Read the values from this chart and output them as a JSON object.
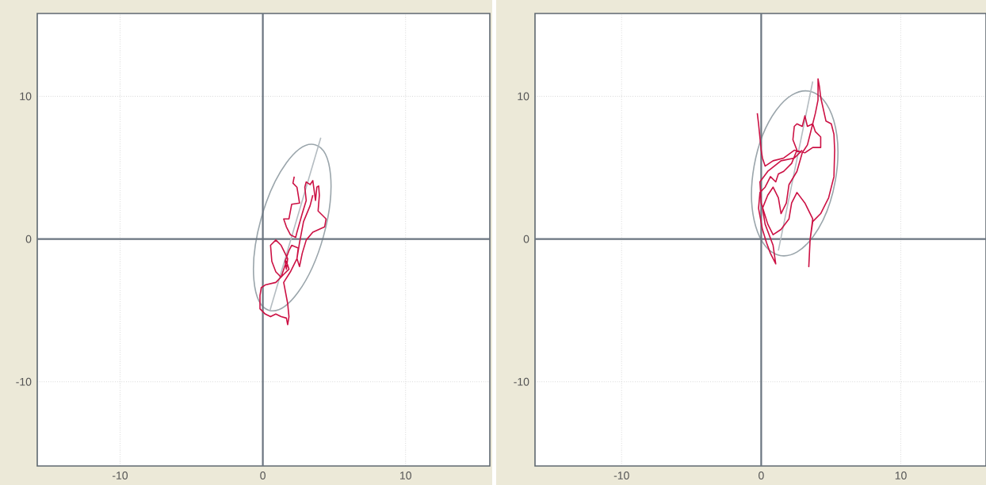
{
  "chart_data": [
    {
      "type": "line",
      "xlim": [
        -15.8,
        15.9
      ],
      "ylim": [
        -15.9,
        15.8
      ],
      "xticks": [
        -10,
        0,
        10
      ],
      "yticks": [
        -10,
        0,
        10
      ],
      "grid": true,
      "series": [
        {
          "color": "#b4bcc1",
          "x": [
            4.06,
            0.5
          ],
          "values": [
            7.1,
            -5.0
          ]
        },
        {
          "color": "#cc1144",
          "x": [
            2.2,
            2.11,
            2.39,
            2.57,
            2.02,
            1.83,
            1.46,
            1.65,
            1.93,
            2.3,
            2.39,
            2.76,
            3.04,
            2.94,
            3.04,
            3.31,
            3.5,
            3.69,
            3.78,
            3.91,
            3.96,
            3.87,
            4.43,
            4.33,
            3.5,
            3.04,
            2.76,
            2.57,
            2.39,
            2.48,
            2.02,
            1.83,
            1.56,
            1.65,
            1.74,
            1.28,
            0.91,
            0.54,
            0.63,
            0.91,
            1.28,
            1.65,
            1.83,
            1.46,
            0.91,
            0.17,
            -0.11,
            -0.2,
            -0.2,
            0.17,
            0.54,
            0.91,
            1.28,
            1.65,
            1.74,
            1.83,
            1.74,
            1.46,
            1.93,
            2.39,
            2.57,
            2.85,
            3.31,
            3.5
          ],
          "values": [
            4.37,
            3.91,
            3.63,
            2.52,
            2.43,
            1.41,
            1.41,
            0.85,
            0.3,
            0.11,
            0.48,
            1.78,
            2.7,
            3.63,
            4.0,
            3.81,
            4.09,
            2.7,
            3.63,
            3.72,
            3.07,
            1.96,
            1.41,
            0.85,
            0.48,
            -0.07,
            -1.0,
            -1.93,
            -1.37,
            -0.63,
            -0.44,
            -0.81,
            -1.56,
            -2.11,
            -1.37,
            -0.44,
            -0.07,
            -0.44,
            -1.56,
            -2.3,
            -2.67,
            -1.56,
            -2.11,
            -2.48,
            -3.04,
            -3.22,
            -3.41,
            -3.96,
            -4.89,
            -5.26,
            -5.44,
            -5.26,
            -5.44,
            -5.54,
            -6.0,
            -5.44,
            -4.52,
            -3.04,
            -2.3,
            -1.37,
            -0.26,
            1.22,
            2.33,
            3.07
          ]
        }
      ]
    },
    {
      "type": "line",
      "xlim": [
        -16.2,
        16.1
      ],
      "ylim": [
        -15.9,
        15.8
      ],
      "xticks": [
        -10,
        0,
        10
      ],
      "yticks": [
        -10,
        0,
        10
      ],
      "grid": true,
      "series": [
        {
          "color": "#b4bcc1",
          "x": [
            3.69,
            1.23
          ],
          "values": [
            11.04,
            -0.81
          ]
        },
        {
          "color": "#cc1144",
          "x": [
            -0.28,
            -0.19,
            0,
            0.09,
            0.28,
            0.85,
            1.61,
            2.37,
            3.13,
            3.69,
            4.26,
            4.26,
            3.88,
            3.69,
            3.31,
            3.13,
            2.94,
            2.56,
            2.37,
            2.27,
            2.56,
            2.18,
            1.61,
            1.23,
            1.04,
            0.66,
            0.47,
            0.28,
            -0.09,
            -0.19,
            0.09,
            0.38,
            0.66,
            1.04,
            0.85,
            0.28,
            0.09,
            0.47,
            0.85,
            1.23,
            1.42,
            1.8,
            1.99,
            2.56,
            2.94,
            3.31,
            3.5,
            3.88,
            4.07,
            4.07,
            4.17,
            4.26,
            4.64,
            5.02,
            5.21,
            5.26,
            5.21,
            4.83,
            4.26,
            3.69,
            3.5,
            3.41,
            3.5,
            3.69,
            3.13,
            2.56,
            2.18,
            1.99,
            1.42,
            0.85,
            0.47,
            0,
            -0.09,
            0.47,
            1.42,
            2.37,
            2.94
          ],
          "values": [
            8.81,
            8.07,
            6.22,
            5.67,
            5.11,
            5.48,
            5.67,
            6.22,
            6.04,
            6.41,
            6.41,
            7.15,
            7.52,
            8.07,
            7.89,
            8.63,
            7.89,
            8.07,
            7.89,
            6.96,
            6.22,
            5.3,
            4.74,
            4.56,
            4.0,
            4.37,
            4.0,
            3.63,
            3.26,
            2.15,
            0.67,
            -0.26,
            -1.0,
            -1.74,
            -0.44,
            1.04,
            2.15,
            3.07,
            3.63,
            2.89,
            1.78,
            2.52,
            3.81,
            4.74,
            6.04,
            6.59,
            7.33,
            8.81,
            9.74,
            11.22,
            10.67,
            9.93,
            8.26,
            8.07,
            7.33,
            6.22,
            4.37,
            2.89,
            1.78,
            1.22,
            -0.07,
            -1.93,
            -0.07,
            1.41,
            2.52,
            3.26,
            2.52,
            1.41,
            0.67,
            0.3,
            1.04,
            2.52,
            4.0,
            4.74,
            5.48,
            5.67,
            6.22
          ]
        }
      ]
    }
  ]
}
